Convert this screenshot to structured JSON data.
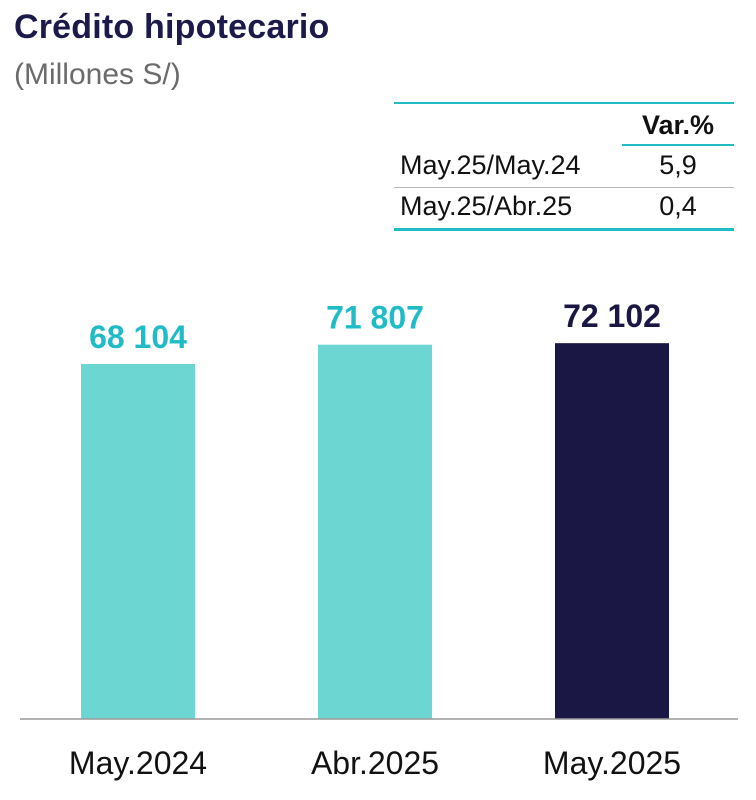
{
  "title": "Crédito hipotecario",
  "subtitle": "(Millones S/)",
  "var_table": {
    "header": "Var.%",
    "rows": [
      {
        "label": "May.25/May.24",
        "value": "5,9"
      },
      {
        "label": "May.25/Abr.25",
        "value": "0,4"
      }
    ]
  },
  "colors": {
    "light_bar": "#6cd6d2",
    "dark_bar": "#1a1744",
    "light_label": "#1fbcc7",
    "dark_label": "#1a1744",
    "title": "#1b1a4a",
    "accent_line": "#1fbcc7"
  },
  "chart_data": {
    "type": "bar",
    "title": "Crédito hipotecario",
    "subtitle": "(Millones S/)",
    "categories": [
      "May.2024",
      "Abr.2025",
      "May.2025"
    ],
    "values": [
      68104,
      71807,
      72102
    ],
    "value_labels": [
      "68 104",
      "71 807",
      "72 102"
    ],
    "bar_colors": [
      "#6cd6d2",
      "#6cd6d2",
      "#1a1744"
    ],
    "label_colors": [
      "#1fbcc7",
      "#1fbcc7",
      "#1a1744"
    ],
    "ylim": [
      0,
      80000
    ],
    "grid": false,
    "legend": "none"
  }
}
